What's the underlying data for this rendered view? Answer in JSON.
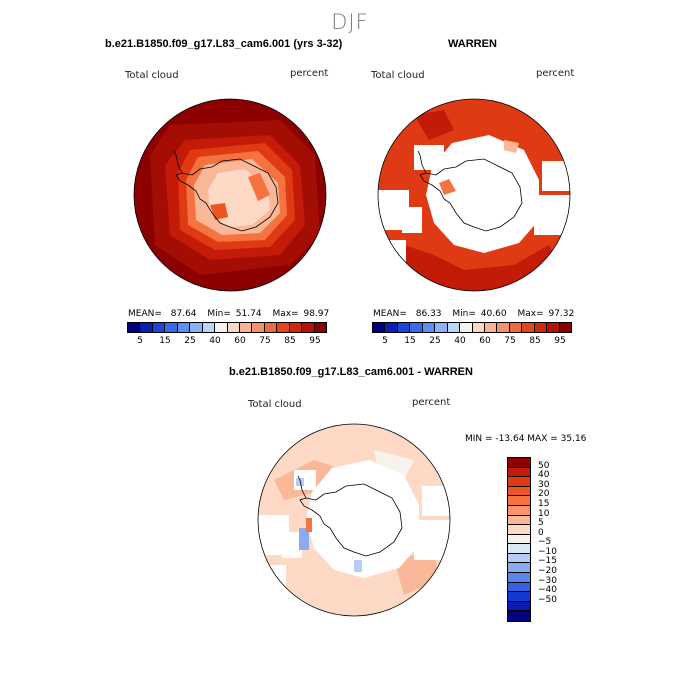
{
  "page": {
    "title": "DJF"
  },
  "left_panel": {
    "header": "b.e21.B1850.f09_g17.L83_cam6.001 (yrs 3-32)",
    "variable": "Total cloud",
    "units": "percent",
    "stats": {
      "mean_label": "MEAN=",
      "mean": "87.64",
      "min_label": "Min=",
      "min": "51.74",
      "max_label": "Max=",
      "max": "98.97"
    }
  },
  "right_panel": {
    "header": "WARREN",
    "variable": "Total cloud",
    "units": "percent",
    "stats": {
      "mean_label": "MEAN=",
      "mean": "86.33",
      "min_label": "Min=",
      "min": "40.60",
      "max_label": "Max=",
      "max": "97.32"
    }
  },
  "diff_panel": {
    "header": "b.e21.B1850.f09_g17.L83_cam6.001 - WARREN",
    "variable": "Total cloud",
    "units": "percent",
    "minmax": "MIN = -13.64 MAX =  35.16"
  },
  "abs_colorbar": {
    "colors": [
      "#000080",
      "#0a1fb4",
      "#1a45d8",
      "#3a6ae8",
      "#5b8ff0",
      "#8ab2f5",
      "#bcd4f8",
      "#f5f2ee",
      "#fcd8c6",
      "#f9b495",
      "#f5906c",
      "#ef6a44",
      "#e2461f",
      "#cf2a0c",
      "#b31306",
      "#8c0000"
    ],
    "tick_labels": [
      "5",
      "15",
      "25",
      "40",
      "60",
      "75",
      "85",
      "95"
    ]
  },
  "diff_colorbar": {
    "colors": [
      "#8c0000",
      "#c31b08",
      "#df3a14",
      "#ee5522",
      "#f57241",
      "#f9946d",
      "#fbb899",
      "#fdd9c6",
      "#f6f2ee",
      "#dde8f7",
      "#b5cdf2",
      "#8aabee",
      "#5c86ea",
      "#3361e4",
      "#1338d4",
      "#0a1cb0",
      "#000080"
    ],
    "tick_labels": [
      "50",
      "40",
      "30",
      "20",
      "15",
      "10",
      "5",
      "0",
      "−5",
      "−10",
      "−15",
      "−20",
      "−30",
      "−40",
      "−50"
    ]
  }
}
